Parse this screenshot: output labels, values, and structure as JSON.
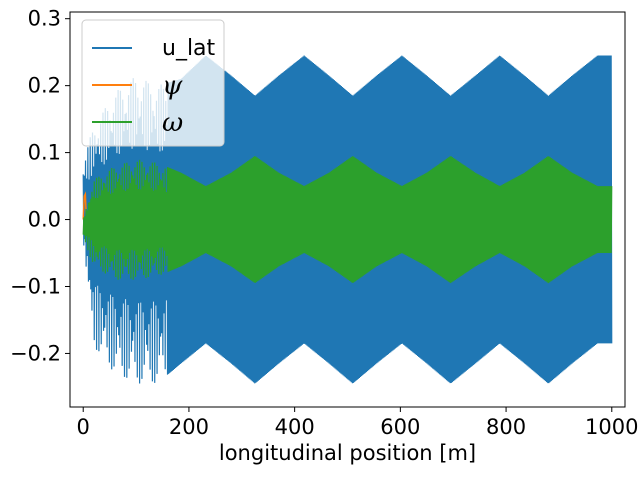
{
  "chart_data": {
    "type": "line",
    "title": "",
    "xlabel": "longitudinal position [m]",
    "ylabel": "",
    "xlim": [
      -25,
      1025
    ],
    "ylim": [
      -0.28,
      0.31
    ],
    "xticks": [
      0,
      200,
      400,
      600,
      800,
      1000
    ],
    "xtick_labels": [
      "0",
      "200",
      "400",
      "600",
      "800",
      "1000"
    ],
    "yticks": [
      -0.2,
      -0.1,
      0.0,
      0.1,
      0.2,
      0.3
    ],
    "ytick_labels": [
      "−0.2",
      "−0.1",
      "0.0",
      "0.1",
      "0.2",
      "0.3"
    ],
    "grid": false,
    "legend": "top-left",
    "series": [
      {
        "name": "u_lat",
        "color": "#1f77b4",
        "description": "rapidly oscillating band; envelope undulates between about ±0.185 and ±0.245 with a period of about 185 m",
        "envelope": {
          "x": [
            0,
            20,
            60,
            100,
            140,
            185,
            232,
            280,
            325,
            370,
            418,
            465,
            510,
            555,
            603,
            650,
            695,
            742,
            788,
            835,
            880,
            925,
            973,
            1000
          ],
          "upper": [
            0.09,
            0.14,
            0.19,
            0.215,
            0.2,
            0.21,
            0.245,
            0.215,
            0.185,
            0.215,
            0.245,
            0.215,
            0.185,
            0.215,
            0.245,
            0.215,
            0.185,
            0.215,
            0.245,
            0.215,
            0.185,
            0.215,
            0.245,
            0.245
          ],
          "lower": [
            -0.03,
            -0.19,
            -0.23,
            -0.245,
            -0.245,
            -0.215,
            -0.185,
            -0.215,
            -0.245,
            -0.215,
            -0.185,
            -0.215,
            -0.245,
            -0.215,
            -0.185,
            -0.215,
            -0.245,
            -0.215,
            -0.185,
            -0.215,
            -0.245,
            -0.215,
            -0.185,
            -0.185
          ]
        }
      },
      {
        "name": "ψ",
        "color": "#ff7f0e",
        "description": "very small values, visible only near x ≈ 0 to 5",
        "points": {
          "x": [
            0,
            2,
            4,
            6
          ],
          "y": [
            0.0,
            0.035,
            0.038,
            0.0
          ]
        }
      },
      {
        "name": "ω",
        "color": "#2ca02c",
        "description": "rapidly oscillating band; envelope undulates between about ±0.05 and ±0.095",
        "envelope": {
          "x": [
            0,
            20,
            60,
            100,
            140,
            185,
            232,
            280,
            325,
            370,
            418,
            465,
            510,
            555,
            603,
            650,
            695,
            742,
            788,
            835,
            880,
            925,
            973,
            1000
          ],
          "upper": [
            0.0,
            0.06,
            0.08,
            0.09,
            0.085,
            0.07,
            0.05,
            0.07,
            0.095,
            0.07,
            0.05,
            0.07,
            0.095,
            0.07,
            0.05,
            0.07,
            0.095,
            0.07,
            0.05,
            0.07,
            0.095,
            0.07,
            0.05,
            0.05
          ],
          "lower": [
            -0.03,
            -0.07,
            -0.09,
            -0.09,
            -0.085,
            -0.07,
            -0.05,
            -0.07,
            -0.095,
            -0.07,
            -0.05,
            -0.07,
            -0.095,
            -0.07,
            -0.05,
            -0.07,
            -0.095,
            -0.07,
            -0.05,
            -0.07,
            -0.095,
            -0.07,
            -0.05,
            -0.05
          ]
        }
      }
    ]
  }
}
